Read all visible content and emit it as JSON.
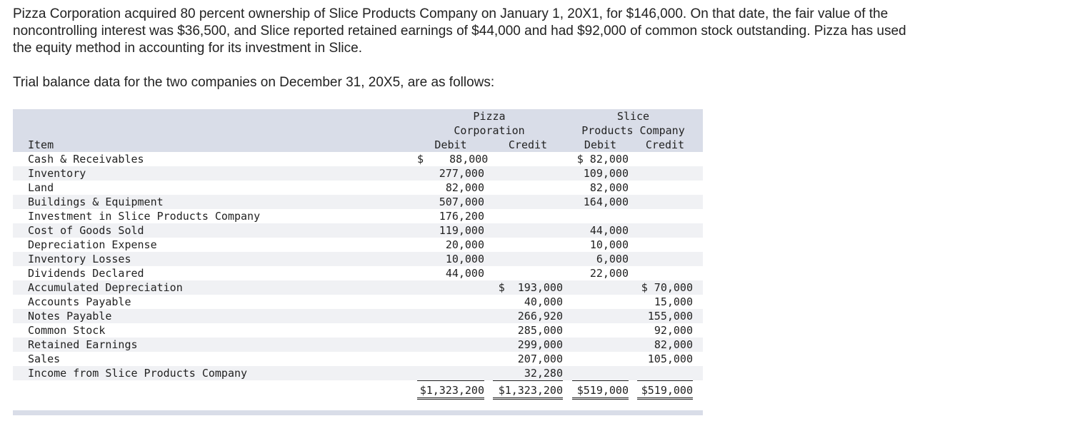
{
  "intro": "Pizza Corporation acquired 80 percent ownership of Slice Products Company on January 1, 20X1, for $146,000. On that date, the fair value of the noncontrolling interest was $36,500, and Slice reported retained earnings of $44,000 and had $92,000 of common stock outstanding. Pizza has used the equity method in accounting for its investment in Slice.",
  "lead": "Trial balance data for the two companies on December 31, 20X5, are as follows:",
  "table": {
    "header": {
      "pizza_line1": "Pizza",
      "pizza_line2": "Corporation",
      "slice_line1": "Slice",
      "slice_line2": "Products Company",
      "item": "Item",
      "debit": "Debit",
      "credit": "Credit"
    },
    "rows": [
      {
        "item": "Cash & Receivables",
        "pd": "$    88,000",
        "pc": "",
        "sd": "$ 82,000",
        "sc": ""
      },
      {
        "item": "Inventory",
        "pd": "277,000",
        "pc": "",
        "sd": "109,000",
        "sc": ""
      },
      {
        "item": "Land",
        "pd": "82,000",
        "pc": "",
        "sd": "82,000",
        "sc": ""
      },
      {
        "item": "Buildings & Equipment",
        "pd": "507,000",
        "pc": "",
        "sd": "164,000",
        "sc": ""
      },
      {
        "item": "Investment in Slice Products Company",
        "pd": "176,200",
        "pc": "",
        "sd": "",
        "sc": ""
      },
      {
        "item": "Cost of Goods Sold",
        "pd": "119,000",
        "pc": "",
        "sd": "44,000",
        "sc": ""
      },
      {
        "item": "Depreciation Expense",
        "pd": "20,000",
        "pc": "",
        "sd": "10,000",
        "sc": ""
      },
      {
        "item": "Inventory Losses",
        "pd": "10,000",
        "pc": "",
        "sd": "6,000",
        "sc": ""
      },
      {
        "item": "Dividends Declared",
        "pd": "44,000",
        "pc": "",
        "sd": "22,000",
        "sc": ""
      },
      {
        "item": "Accumulated Depreciation",
        "pd": "",
        "pc": "$  193,000",
        "sd": "",
        "sc": "$ 70,000"
      },
      {
        "item": "Accounts Payable",
        "pd": "",
        "pc": "40,000",
        "sd": "",
        "sc": "15,000"
      },
      {
        "item": "Notes Payable",
        "pd": "",
        "pc": "266,920",
        "sd": "",
        "sc": "155,000"
      },
      {
        "item": "Common Stock",
        "pd": "",
        "pc": "285,000",
        "sd": "",
        "sc": "92,000"
      },
      {
        "item": "Retained Earnings",
        "pd": "",
        "pc": "299,000",
        "sd": "",
        "sc": "82,000"
      },
      {
        "item": "Sales",
        "pd": "",
        "pc": "207,000",
        "sd": "",
        "sc": "105,000"
      },
      {
        "item": "Income from Slice Products Company",
        "pd": "",
        "pc": "32,280",
        "sd": "",
        "sc": ""
      }
    ],
    "totals": {
      "pd": "$1,323,200",
      "pc": "$1,323,200",
      "sd": "$519,000",
      "sc": "$519,000"
    }
  }
}
